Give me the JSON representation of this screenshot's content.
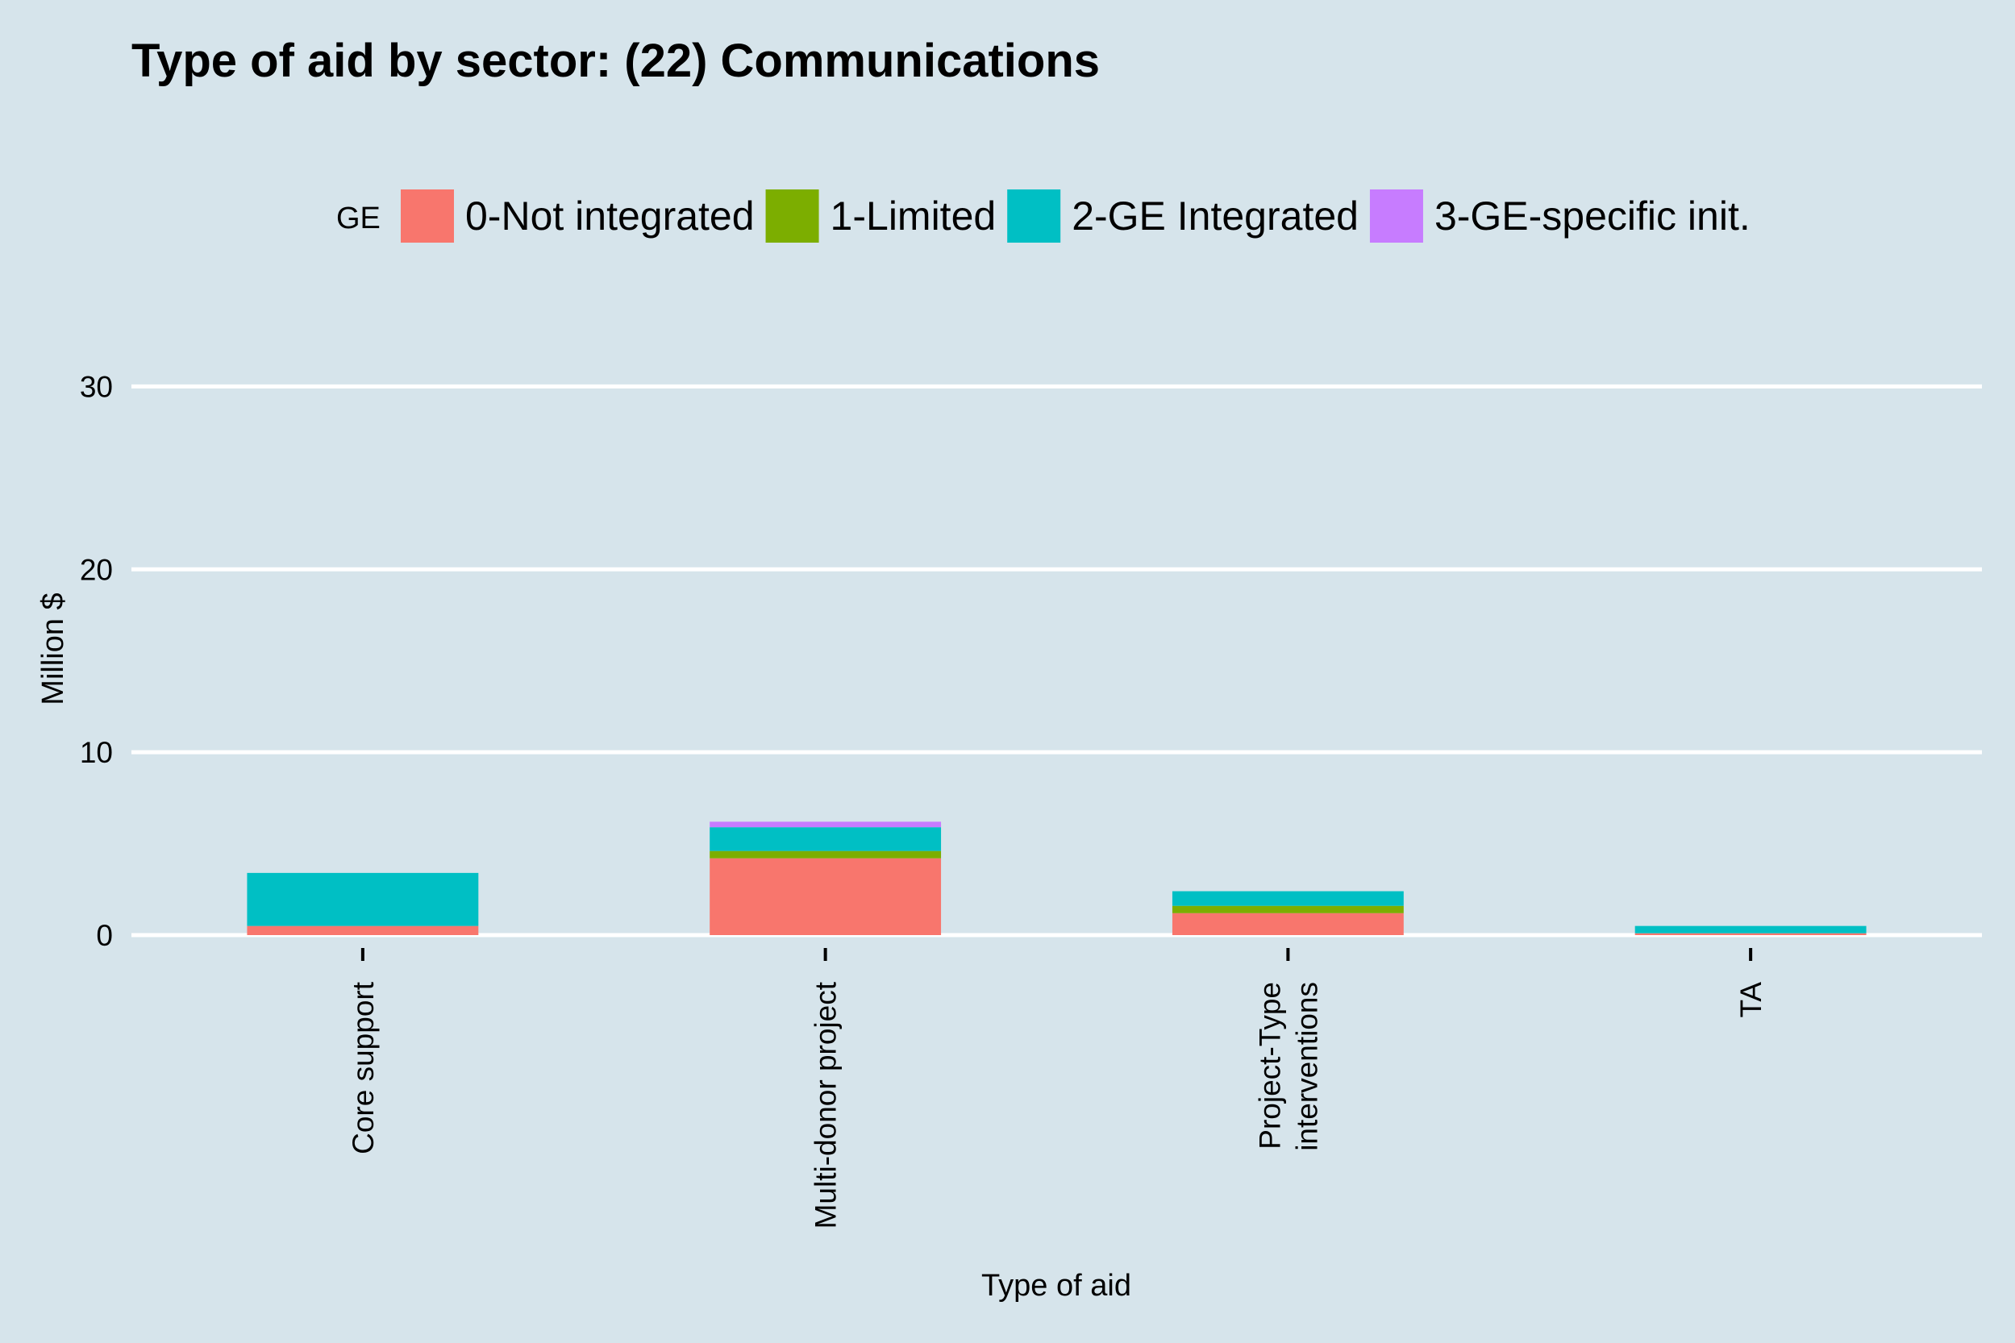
{
  "chart_data": {
    "type": "bar",
    "stacked": true,
    "title": "Type of aid by sector:  (22) Communications",
    "xlabel": "Type of aid",
    "ylabel": "Million $",
    "ylim": [
      0,
      33.5
    ],
    "yticks": [
      0,
      10,
      20,
      30
    ],
    "grid": "horizontal",
    "legend_position": "top",
    "legend_title": "GE",
    "categories": [
      [
        "Core support"
      ],
      [
        "Multi-donor project"
      ],
      [
        "Project-Type",
        "interventions"
      ],
      [
        "TA"
      ]
    ],
    "series": [
      {
        "name": "0-Not integrated",
        "color": "#f8766d",
        "values": [
          0.5,
          4.2,
          1.2,
          0.1
        ]
      },
      {
        "name": "1-Limited",
        "color": "#7cae00",
        "values": [
          0.0,
          0.4,
          0.4,
          0.0
        ]
      },
      {
        "name": "2-GE Integrated",
        "color": "#00bfc4",
        "values": [
          2.9,
          1.3,
          0.8,
          0.4
        ]
      },
      {
        "name": "3-GE-specific init.",
        "color": "#c77cff",
        "values": [
          0.0,
          0.3,
          0.0,
          0.0
        ]
      }
    ]
  }
}
